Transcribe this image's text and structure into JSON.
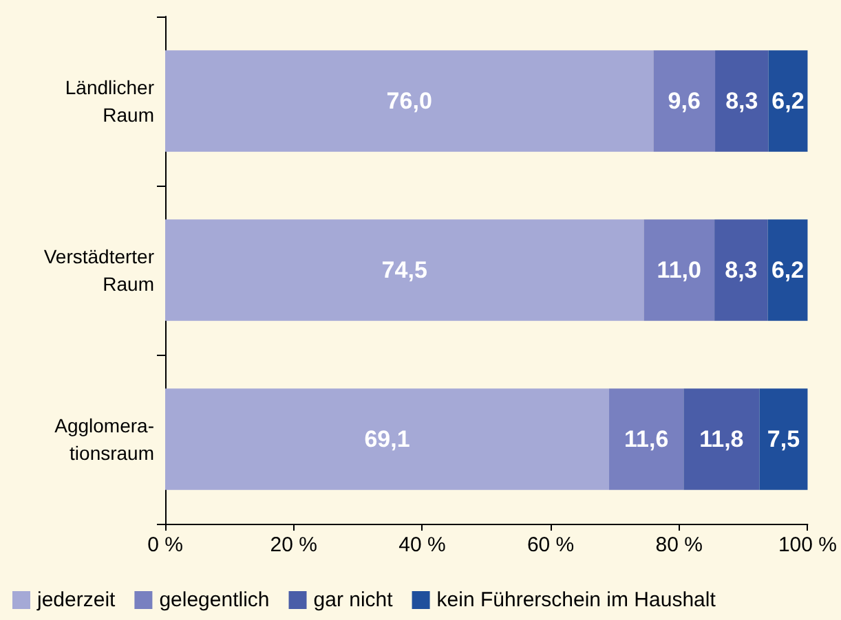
{
  "chart_data": {
    "type": "bar",
    "orientation": "horizontal",
    "stacked": true,
    "categories": [
      "Ländlicher\nRaum",
      "Verstädterter\nRaum",
      "Agglomera-\ntionsraum"
    ],
    "series": [
      {
        "name": "jederzeit",
        "color": "#a5a9d6",
        "values": [
          76.0,
          74.5,
          69.1
        ],
        "value_labels": [
          "76,0",
          "74,5",
          "69,1"
        ]
      },
      {
        "name": "gelegentlich",
        "color": "#7880c0",
        "values": [
          9.6,
          11.0,
          11.6
        ],
        "value_labels": [
          "9,6",
          "11,0",
          "11,6"
        ]
      },
      {
        "name": "gar nicht",
        "color": "#4a5da8",
        "values": [
          8.3,
          8.3,
          11.8
        ],
        "value_labels": [
          "8,3",
          "8,3",
          "11,8"
        ]
      },
      {
        "name": "kein Führerschein im Haushalt",
        "color": "#1f4f9c",
        "values": [
          6.2,
          6.2,
          7.5
        ],
        "value_labels": [
          "6,2",
          "6,2",
          "7,5"
        ]
      }
    ],
    "xlim": [
      0,
      100
    ],
    "xticks": [
      {
        "value": 0,
        "label": "0 %"
      },
      {
        "value": 20,
        "label": "20 %"
      },
      {
        "value": 40,
        "label": "40 %"
      },
      {
        "value": 60,
        "label": "60 %"
      },
      {
        "value": 80,
        "label": "80 %"
      },
      {
        "value": 100,
        "label": "100 %"
      }
    ],
    "grid": false,
    "legend": "bottom"
  }
}
